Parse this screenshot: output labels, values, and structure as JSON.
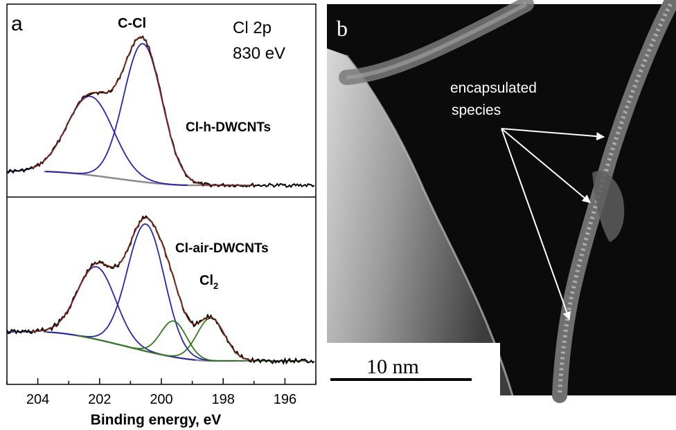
{
  "panel_a": {
    "letter": "a",
    "label_c_cl": "C-Cl",
    "label_cl2p": "Cl 2p",
    "label_energy": "830 eV",
    "sample_top": "Cl-h-DWCNTs",
    "sample_bottom": "Cl-air-DWCNTs",
    "label_cl2_base": "Cl",
    "label_cl2_sub": "2",
    "xlabel": "Binding energy, eV",
    "ticks": [
      "204",
      "202",
      "200",
      "198",
      "196"
    ]
  },
  "panel_b": {
    "letter": "b",
    "annotation_line1": "encapsulated",
    "annotation_line2": "species",
    "scalebar_label": "10 nm"
  },
  "chart_data": {
    "type": "line",
    "title": "",
    "xlabel": "Binding energy, eV",
    "ylabel": "",
    "x_reversed": true,
    "xlim": [
      205,
      195
    ],
    "grid": false,
    "colors": {
      "data": "#000000",
      "envelope": "#8b2a1a",
      "component_blue": "#2a22b0",
      "component_green": "#2f7a1c",
      "background": "#8a8a8a"
    },
    "spectra": [
      {
        "sample": "Cl-h-DWCNTs",
        "components": [
          {
            "position": 202.3,
            "color": "blue"
          },
          {
            "position": 200.6,
            "color": "blue"
          }
        ]
      },
      {
        "sample": "Cl-air-DWCNTs",
        "components": [
          {
            "position": 202.1,
            "color": "blue"
          },
          {
            "position": 200.5,
            "color": "blue"
          },
          {
            "position": 199.6,
            "color": "green"
          },
          {
            "position": 198.4,
            "color": "green"
          }
        ]
      }
    ]
  }
}
